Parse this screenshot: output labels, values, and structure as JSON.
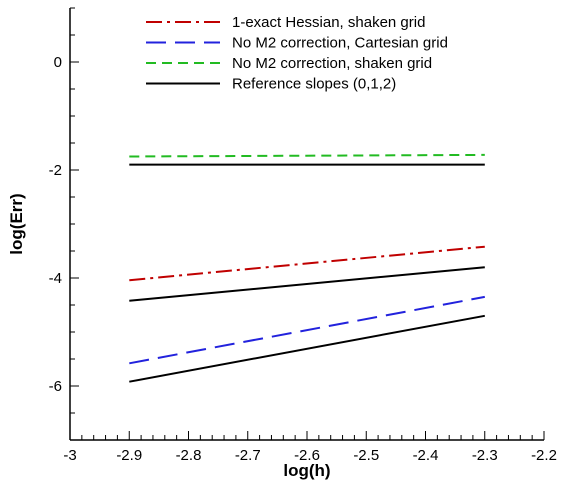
{
  "chart_data": {
    "type": "line",
    "xlabel": "log(h)",
    "ylabel": "log(Err)",
    "xlim": [
      -3.0,
      -2.2
    ],
    "ylim": [
      -7.0,
      1.0
    ],
    "xticks": [
      -3.0,
      -2.9,
      -2.8,
      -2.7,
      -2.6,
      -2.5,
      -2.4,
      -2.3,
      -2.2
    ],
    "xtick_labels": [
      "-3",
      "-2.9",
      "-2.8",
      "-2.7",
      "-2.6",
      "-2.5",
      "-2.4",
      "-2.3",
      "-2.2"
    ],
    "yticks": [
      -6,
      -4,
      -2,
      0
    ],
    "ytick_labels": [
      "-6",
      "-4",
      "-2",
      "0"
    ],
    "grid": false,
    "legend_position": "top-right",
    "series": [
      {
        "name": "1-exact Hessian, shaken grid",
        "color": "#c00000",
        "dash": "dash-dot",
        "x": [
          -2.9,
          -2.3
        ],
        "y": [
          -4.04,
          -3.42
        ]
      },
      {
        "name": "No M2 correction, Cartesian grid",
        "color": "#2222dd",
        "dash": "long-dash",
        "x": [
          -2.9,
          -2.3
        ],
        "y": [
          -5.58,
          -4.35
        ]
      },
      {
        "name": "No M2 correction, shaken grid",
        "color": "#22bb22",
        "dash": "dash",
        "x": [
          -2.9,
          -2.3
        ],
        "y": [
          -1.75,
          -1.72
        ]
      },
      {
        "name": "Reference slopes (0,1,2)",
        "color": "#000000",
        "dash": "solid",
        "x": [
          -2.9,
          -2.3
        ],
        "y": [
          -1.9,
          -1.9
        ]
      },
      {
        "legend": false,
        "color": "#000000",
        "dash": "solid",
        "x": [
          -2.9,
          -2.3
        ],
        "y": [
          -4.42,
          -3.8
        ]
      },
      {
        "legend": false,
        "color": "#000000",
        "dash": "solid",
        "x": [
          -2.9,
          -2.3
        ],
        "y": [
          -5.92,
          -4.7
        ]
      }
    ]
  }
}
